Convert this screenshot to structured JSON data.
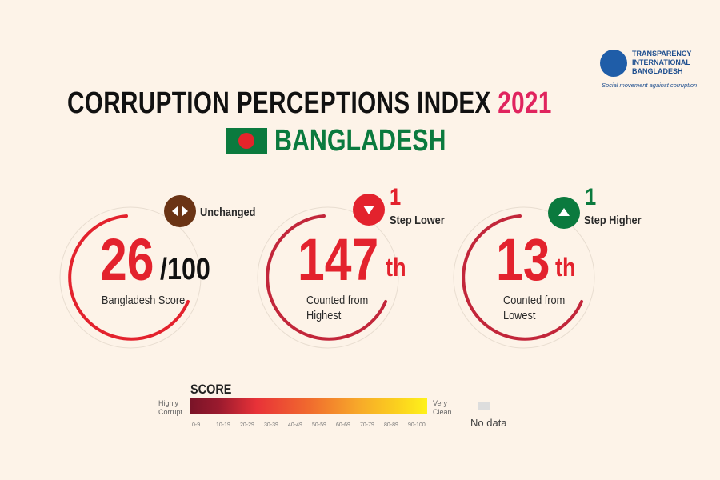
{
  "header": {
    "title": "CORRUPTION PERCEPTIONS INDEX",
    "year": "2021",
    "country": "BANGLADESH"
  },
  "logo": {
    "line1": "TRANSPARENCY",
    "line2": "INTERNATIONAL",
    "line3": "BANGLADESH",
    "tagline": "Social movement against corruption"
  },
  "cards": [
    {
      "value": "26",
      "suffix": "/100",
      "label1": "Bangladesh Score",
      "label2": "",
      "change_num": "",
      "change_text": "Unchanged",
      "badge_color": "#6b3415",
      "badge_icon": "left-right-arrows-icon"
    },
    {
      "value": "147",
      "suffix": "th",
      "label1": "Counted from",
      "label2": "Highest",
      "change_num": "1",
      "change_text": "Step Lower",
      "badge_color": "#e3222d",
      "badge_icon": "down-triangle-icon"
    },
    {
      "value": "13",
      "suffix": "th",
      "label1": "Counted from",
      "label2": "Lowest",
      "change_num": "1",
      "change_text": "Step Higher",
      "badge_color": "#0b7a3e",
      "badge_icon": "up-triangle-icon"
    }
  ],
  "legend": {
    "title": "SCORE",
    "left1": "Highly",
    "left2": "Corrupt",
    "right1": "Very",
    "right2": "Clean",
    "no_data": "No data",
    "ticks": [
      "0-9",
      "10-19",
      "20-29",
      "30-39",
      "40-49",
      "50-59",
      "60-69",
      "70-79",
      "80-89",
      "90-100"
    ]
  },
  "colors": {
    "red": "#e3222d",
    "green": "#0b7a3e",
    "background": "#fdf3e8"
  }
}
